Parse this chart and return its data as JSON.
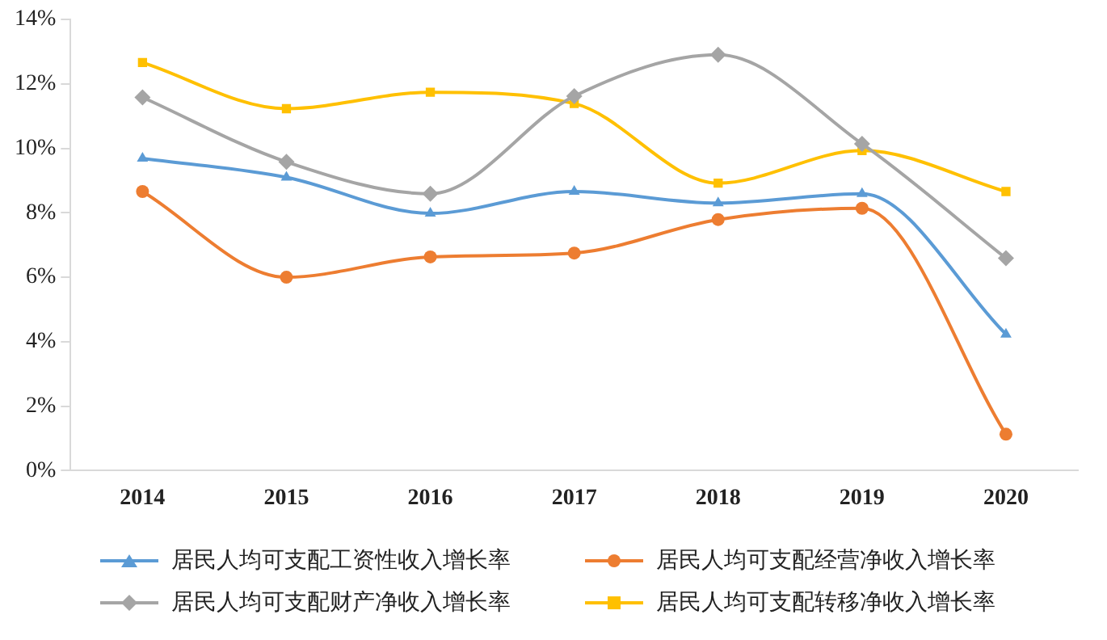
{
  "chart_data": {
    "type": "line",
    "categories": [
      "2014",
      "2015",
      "2016",
      "2017",
      "2018",
      "2019",
      "2020"
    ],
    "series": [
      {
        "name": "居民人均可支配工资性收入增长率",
        "color": "#5b9bd5",
        "marker": "triangle",
        "values": [
          9.69,
          9.1,
          7.98,
          8.66,
          8.3,
          8.59,
          4.23
        ]
      },
      {
        "name": "居民人均可支配经营净收入增长率",
        "color": "#ed7d31",
        "marker": "circle",
        "values": [
          8.66,
          6.0,
          6.63,
          6.75,
          7.79,
          8.14,
          1.13
        ]
      },
      {
        "name": "居民人均可支配财产净收入增长率",
        "color": "#a5a5a5",
        "marker": "diamond",
        "values": [
          11.58,
          9.58,
          8.59,
          11.62,
          12.9,
          10.14,
          6.59
        ]
      },
      {
        "name": "居民人均可支配转移净收入增长率",
        "color": "#ffc000",
        "marker": "square",
        "values": [
          12.66,
          11.23,
          11.74,
          11.39,
          8.92,
          9.93,
          8.66
        ]
      }
    ],
    "ylim": [
      0,
      14
    ],
    "yticks": [
      {
        "value": 0,
        "label": "0%"
      },
      {
        "value": 2,
        "label": "2%"
      },
      {
        "value": 4,
        "label": "4%"
      },
      {
        "value": 6,
        "label": "6%"
      },
      {
        "value": 8,
        "label": "8%"
      },
      {
        "value": 10,
        "label": "10%"
      },
      {
        "value": 12,
        "label": "12%"
      },
      {
        "value": 14,
        "label": "14%"
      }
    ],
    "grid": false,
    "legend": "bottom"
  }
}
